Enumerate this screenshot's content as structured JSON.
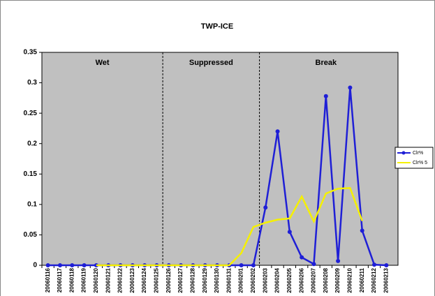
{
  "chart_data": {
    "type": "line",
    "title": "TWP-ICE",
    "categories": [
      "20060116",
      "20060117",
      "20060118",
      "20060119",
      "20060120",
      "20060121",
      "20060122",
      "20060123",
      "20060124",
      "20060125",
      "20060126",
      "20060127",
      "20060128",
      "20060129",
      "20060130",
      "20060131",
      "20060201",
      "20060202",
      "20060203",
      "20060204",
      "20060205",
      "20060206",
      "20060207",
      "20060208",
      "20060209",
      "20060210",
      "20060211",
      "20060212",
      "20060213"
    ],
    "series": [
      {
        "name": "Clr%",
        "color": "#1f1fd6",
        "markers": true,
        "values": [
          0,
          0,
          0,
          0,
          0,
          0,
          0,
          0,
          0,
          0,
          0,
          0,
          0,
          0,
          0,
          0,
          0,
          0,
          0.095,
          0.22,
          0.055,
          0.013,
          0.002,
          0.278,
          0.007,
          0.292,
          0.057,
          0.001,
          0
        ]
      },
      {
        "name": "Clr% 5",
        "color": "#f5f000",
        "markers": false,
        "values": [
          null,
          null,
          null,
          null,
          0,
          0,
          0,
          0,
          0,
          0,
          0,
          0,
          0,
          0,
          0,
          0,
          0.02,
          0.063,
          0.07,
          0.075,
          0.077,
          0.113,
          0.072,
          0.118,
          0.126,
          0.127,
          0.073,
          null,
          null
        ]
      }
    ],
    "annotations": [
      {
        "text": "Wet",
        "from": "20060116",
        "to": "20060125"
      },
      {
        "text": "Suppressed",
        "from": "20060126",
        "to": "20060202"
      },
      {
        "text": "Break",
        "from": "20060203",
        "to": "20060213"
      }
    ],
    "ylim": [
      0,
      0.35
    ],
    "yticks": [
      0,
      0.05,
      0.1,
      0.15,
      0.2,
      0.25,
      0.3,
      0.35
    ],
    "plot_background": "#c0c0c0",
    "legend": "right"
  }
}
